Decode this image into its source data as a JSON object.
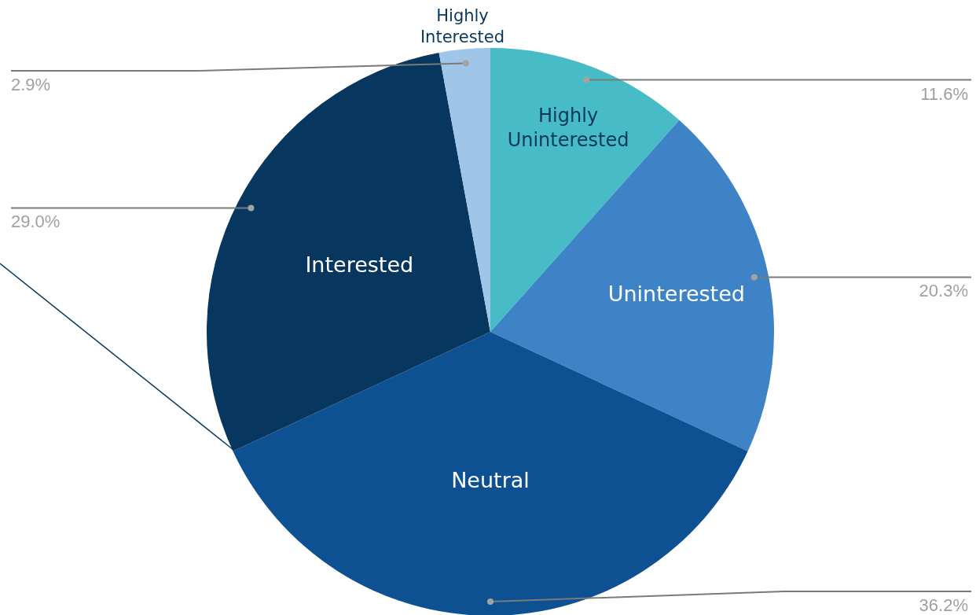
{
  "chart_data": {
    "type": "pie",
    "categories": [
      "Highly Uninterested",
      "Uninterested",
      "Neutral",
      "Interested",
      "Highly Interested"
    ],
    "values": [
      11.6,
      20.3,
      36.2,
      29.0,
      2.9
    ],
    "colors": [
      "#47bcc6",
      "#3d83c6",
      "#0d5192",
      "#07365f",
      "#9fc5e8"
    ],
    "value_labels": [
      "11.6%",
      "20.3%",
      "36.2%",
      "29.0%",
      "2.9%"
    ]
  }
}
